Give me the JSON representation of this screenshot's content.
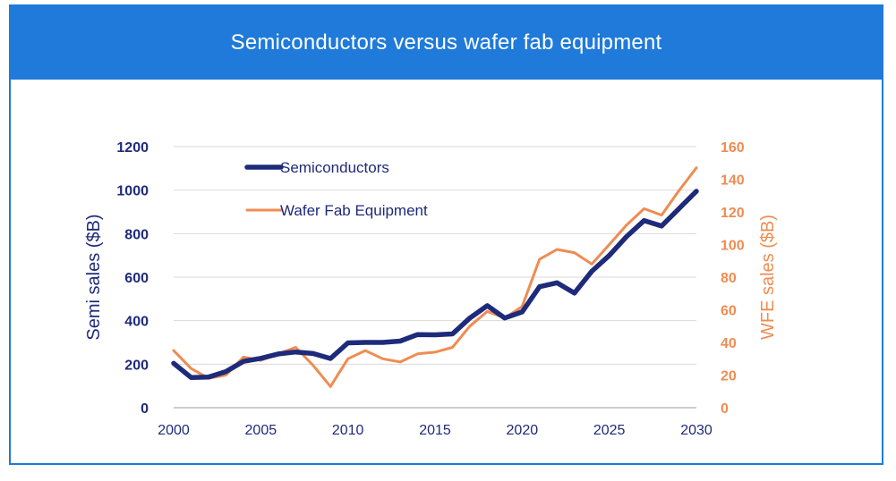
{
  "header": {
    "title": "Semiconductors versus wafer fab equipment"
  },
  "colors": {
    "banner": "#1f7ad9",
    "semi": "#1e2a7a",
    "wfe": "#ef8c52"
  },
  "chart_data": {
    "type": "line",
    "x": [
      2000,
      2001,
      2002,
      2003,
      2004,
      2005,
      2006,
      2007,
      2008,
      2009,
      2010,
      2011,
      2012,
      2013,
      2014,
      2015,
      2016,
      2017,
      2018,
      2019,
      2020,
      2021,
      2022,
      2023,
      2024,
      2025,
      2026,
      2027,
      2028,
      2029,
      2030
    ],
    "xlim": [
      2000,
      2030
    ],
    "xticks": [
      "2000",
      "2005",
      "2010",
      "2015",
      "2020",
      "2025",
      "2030"
    ],
    "ylabel": "Semi sales ($B)",
    "ylim": [
      0,
      1200
    ],
    "yticks": [
      "0",
      "200",
      "400",
      "600",
      "800",
      "1000",
      "1200"
    ],
    "y2label": "WFE sales ($B)",
    "y2lim": [
      0,
      160
    ],
    "y2ticks": [
      "0",
      "20",
      "40",
      "60",
      "80",
      "100",
      "120",
      "140",
      "160"
    ],
    "legend_position": "upper-left",
    "series": [
      {
        "name": "Semiconductors",
        "axis": "left",
        "color": "#1e2a7a",
        "values": [
          204,
          139,
          141,
          166,
          213,
          227,
          247,
          256,
          249,
          226,
          298,
          300,
          300,
          306,
          336,
          335,
          339,
          412,
          469,
          412,
          440,
          556,
          574,
          527,
          627,
          700,
          787,
          860,
          835,
          915,
          995
        ]
      },
      {
        "name": "Wafer Fab Equipment",
        "axis": "right",
        "color": "#ef8c52",
        "values": [
          35,
          24,
          18,
          20,
          31,
          29,
          33,
          37,
          26,
          13,
          30,
          35,
          30,
          28,
          33,
          34,
          37,
          50,
          59,
          55,
          62,
          91,
          97,
          95,
          88,
          100,
          112,
          122,
          118,
          133,
          147
        ]
      }
    ]
  }
}
